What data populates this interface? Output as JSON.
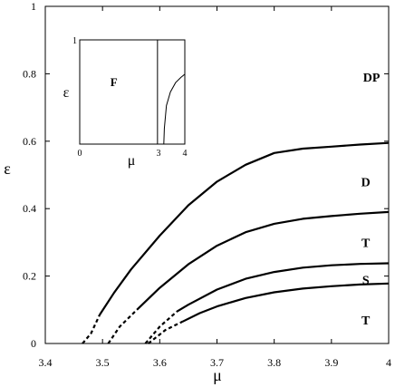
{
  "chart_data": {
    "type": "line",
    "xlabel": "μ",
    "ylabel": "ε",
    "xlim": [
      3.4,
      4.0
    ],
    "ylim": [
      0,
      1.0
    ],
    "x_ticks": [
      {
        "value": 3.4,
        "label": "3.4"
      },
      {
        "value": 3.5,
        "label": "3.5"
      },
      {
        "value": 3.6,
        "label": "3.6"
      },
      {
        "value": 3.7,
        "label": "3.7"
      },
      {
        "value": 3.8,
        "label": "3.8"
      },
      {
        "value": 3.9,
        "label": "3.9"
      },
      {
        "value": 4.0,
        "label": "4"
      }
    ],
    "y_ticks": [
      {
        "value": 0,
        "label": "0"
      },
      {
        "value": 0.2,
        "label": "0.2"
      },
      {
        "value": 0.4,
        "label": "0.4"
      },
      {
        "value": 0.6,
        "label": "0.6"
      },
      {
        "value": 0.8,
        "label": "0.8"
      },
      {
        "value": 1.0,
        "label": "1"
      }
    ],
    "series": [
      {
        "dashed": [
          [
            3.465,
            0.0
          ],
          [
            3.48,
            0.03
          ],
          [
            3.495,
            0.085
          ]
        ],
        "solid": [
          [
            3.495,
            0.085
          ],
          [
            3.52,
            0.15
          ],
          [
            3.55,
            0.22
          ],
          [
            3.6,
            0.32
          ],
          [
            3.65,
            0.41
          ],
          [
            3.7,
            0.48
          ],
          [
            3.75,
            0.53
          ],
          [
            3.8,
            0.565
          ],
          [
            3.85,
            0.578
          ],
          [
            3.9,
            0.584
          ],
          [
            3.95,
            0.59
          ],
          [
            4.0,
            0.595
          ]
        ]
      },
      {
        "dashed": [
          [
            3.51,
            0.0
          ],
          [
            3.53,
            0.05
          ],
          [
            3.56,
            0.1
          ]
        ],
        "solid": [
          [
            3.56,
            0.1
          ],
          [
            3.6,
            0.165
          ],
          [
            3.65,
            0.235
          ],
          [
            3.7,
            0.29
          ],
          [
            3.75,
            0.33
          ],
          [
            3.8,
            0.355
          ],
          [
            3.85,
            0.37
          ],
          [
            3.9,
            0.378
          ],
          [
            3.95,
            0.385
          ],
          [
            4.0,
            0.39
          ]
        ]
      },
      {
        "dashed": [
          [
            3.575,
            0.0
          ],
          [
            3.6,
            0.05
          ],
          [
            3.63,
            0.095
          ]
        ],
        "solid": [
          [
            3.63,
            0.095
          ],
          [
            3.65,
            0.115
          ],
          [
            3.7,
            0.16
          ],
          [
            3.75,
            0.192
          ],
          [
            3.8,
            0.212
          ],
          [
            3.85,
            0.225
          ],
          [
            3.9,
            0.232
          ],
          [
            3.95,
            0.236
          ],
          [
            4.0,
            0.238
          ]
        ]
      },
      {
        "dashed": [
          [
            3.58,
            0.0
          ],
          [
            3.61,
            0.04
          ],
          [
            3.64,
            0.065
          ]
        ],
        "solid": [
          [
            3.64,
            0.065
          ],
          [
            3.67,
            0.09
          ],
          [
            3.7,
            0.11
          ],
          [
            3.75,
            0.135
          ],
          [
            3.8,
            0.152
          ],
          [
            3.85,
            0.163
          ],
          [
            3.9,
            0.17
          ],
          [
            3.95,
            0.175
          ],
          [
            4.0,
            0.178
          ]
        ]
      }
    ],
    "region_labels": [
      {
        "text": "DP",
        "x": 3.97,
        "y": 0.79
      },
      {
        "text": "D",
        "x": 3.96,
        "y": 0.48
      },
      {
        "text": "T",
        "x": 3.96,
        "y": 0.3
      },
      {
        "text": "S",
        "x": 3.96,
        "y": 0.19
      },
      {
        "text": "T",
        "x": 3.96,
        "y": 0.07
      }
    ],
    "inset": {
      "xlabel": "μ",
      "ylabel": "ε",
      "xlim": [
        0,
        4
      ],
      "ylim": [
        0,
        1
      ],
      "x_ticks": [
        {
          "value": 0,
          "label": "0"
        },
        {
          "value": 3,
          "label": "3"
        },
        {
          "value": 4,
          "label": "4"
        }
      ],
      "y_ticks": [
        {
          "value": 1,
          "label": "1"
        }
      ],
      "vertical_line_x": 2.96,
      "curve": [
        [
          3.2,
          0.0
        ],
        [
          3.22,
          0.15
        ],
        [
          3.3,
          0.37
        ],
        [
          3.45,
          0.5
        ],
        [
          3.65,
          0.59
        ],
        [
          3.85,
          0.64
        ],
        [
          4.0,
          0.67
        ]
      ],
      "region_labels": [
        {
          "text": "F",
          "x": 1.3,
          "y": 0.6
        }
      ]
    }
  }
}
